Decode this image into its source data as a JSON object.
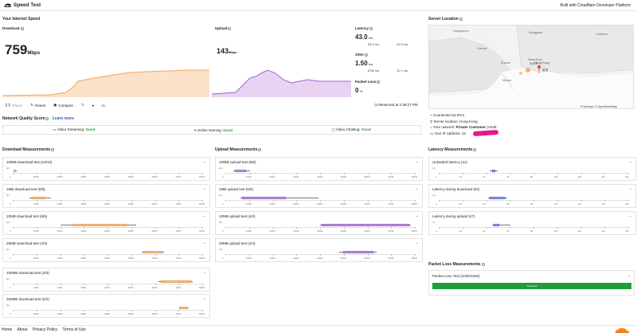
{
  "header": {
    "title": "Speed Test",
    "built_with": "Built with Cloudflare Developer Platform"
  },
  "speed": {
    "section_title": "Your Internet Speed",
    "download": {
      "label": "Download",
      "value": "759",
      "unit": "Mbps"
    },
    "upload": {
      "label": "Upload",
      "value": "143",
      "unit": "Mbps"
    },
    "latency": {
      "label": "Latency",
      "value": "43.0",
      "unit": "ms",
      "down": "63.5 ms",
      "up": "43.9 ms"
    },
    "jitter": {
      "label": "Jitter",
      "value": "1.50",
      "unit": "ms",
      "down": "6.56 ms",
      "up": "11.1 ms"
    },
    "packet_loss": {
      "label": "Packet Loss",
      "value": "0",
      "unit": "%"
    },
    "actions": {
      "pause": "Pause",
      "retest": "Retest",
      "compare": "Compare"
    },
    "measured_at": "Measured at 4:39:27 PM"
  },
  "server": {
    "title": "Server Location",
    "attribution": "Protomaps © OpenStreetMap",
    "map_labels": [
      "Shenzhen",
      "深圳市",
      "Hong Kong",
      "香港",
      "Zhuhai",
      "Macau",
      "Foshan",
      "Dongguan",
      "Huizhou",
      "Guangzhou"
    ],
    "connected": "Connected via IPv4",
    "location": "Server location: Hong Kong",
    "network_prefix": "Your network: ",
    "network_name": "Private Customer",
    "network_as": " (AS36",
    "ip_prefix": "Your IP address: 13",
    "accent": "#e8188a"
  },
  "quality": {
    "title": "Network Quality Score",
    "learn_more": "Learn more",
    "items": [
      {
        "label": "Video Streaming:",
        "score": "Good"
      },
      {
        "label": "Online Gaming:",
        "score": "Good"
      },
      {
        "label": "Video Chatting:",
        "score": "Good"
      }
    ]
  },
  "axes": {
    "mbps": [
      "0",
      "100M",
      "200M",
      "300M",
      "400M",
      "500M",
      "600M",
      "700M",
      "800M"
    ],
    "latency": [
      "0",
      "20",
      "40",
      "60",
      "80",
      "100",
      "120",
      "140",
      "160"
    ]
  },
  "download_measurements": {
    "title": "Download Measurements",
    "tests": [
      {
        "label": "100kB download test (10/10)",
        "unit": "bps"
      },
      {
        "label": "1MB download test (8/8)",
        "unit": "bps"
      },
      {
        "label": "10MB download test (6/6)",
        "unit": "bps"
      },
      {
        "label": "25MB download test (4/4)",
        "unit": "bps"
      },
      {
        "label": "100MB download test (3/3)",
        "unit": "bps"
      },
      {
        "label": "250MB download test (2/2)",
        "unit": "bps"
      }
    ]
  },
  "upload_measurements": {
    "title": "Upload Measurements",
    "tests": [
      {
        "label": "100kB upload test (8/8)",
        "unit": "bps"
      },
      {
        "label": "1MB upload test (6/6)",
        "unit": "bps"
      },
      {
        "label": "10MB upload test (4/4)",
        "unit": "bps"
      },
      {
        "label": "25MB upload test (4/4)",
        "unit": "bps"
      }
    ]
  },
  "latency_measurements": {
    "title": "Latency Measurements",
    "tests": [
      {
        "label": "Unloaded latency (41)",
        "unit": "ms"
      },
      {
        "label": "Latency during download (64)",
        "unit": "ms"
      },
      {
        "label": "Latency during upload (47)",
        "unit": "ms"
      }
    ]
  },
  "packet_loss_measurements": {
    "title": "Packet Loss Measurements",
    "test_label": "Packet Loss Test (1000/1000)",
    "bar_label": "Received",
    "received_fraction": 1.0
  },
  "footer": {
    "links": [
      "Home",
      "About",
      "Privacy Policy",
      "Terms of Use"
    ]
  },
  "colors": {
    "download": "#f0a65a",
    "upload": "#a560cf",
    "latency": "#4a66c8",
    "good": "#2a9a3a"
  }
}
